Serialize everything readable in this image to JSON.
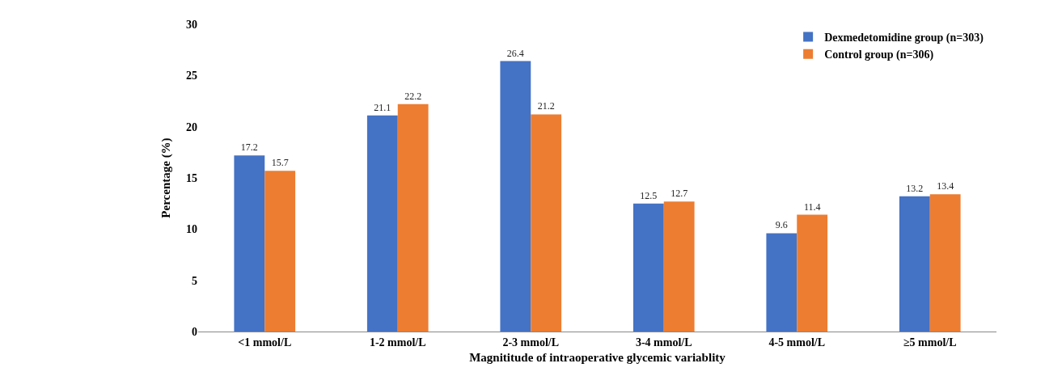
{
  "chart_data": {
    "type": "bar",
    "xlabel": "Magnititude of intraoperative glycemic variablity",
    "ylabel": "Percentage (%)",
    "categories": [
      "<1 mmol/L",
      "1-2 mmol/L",
      "2-3 mmol/L",
      "3-4 mmol/L",
      "4-5 mmol/L",
      "≥5 mmol/L"
    ],
    "series": [
      {
        "name": "Dexmedetomidine group (n=303)",
        "color": "#4472c4",
        "values": [
          17.2,
          21.1,
          26.4,
          12.5,
          9.6,
          13.2
        ]
      },
      {
        "name": "Control group (n=306)",
        "color": "#ed7d31",
        "values": [
          15.7,
          22.2,
          21.2,
          12.7,
          11.4,
          13.4
        ]
      }
    ],
    "ylim": [
      0,
      30
    ],
    "yticks": [
      0,
      5,
      10,
      15,
      20,
      25,
      30
    ],
    "grid": false,
    "legend": "top right",
    "data_labels": true
  }
}
